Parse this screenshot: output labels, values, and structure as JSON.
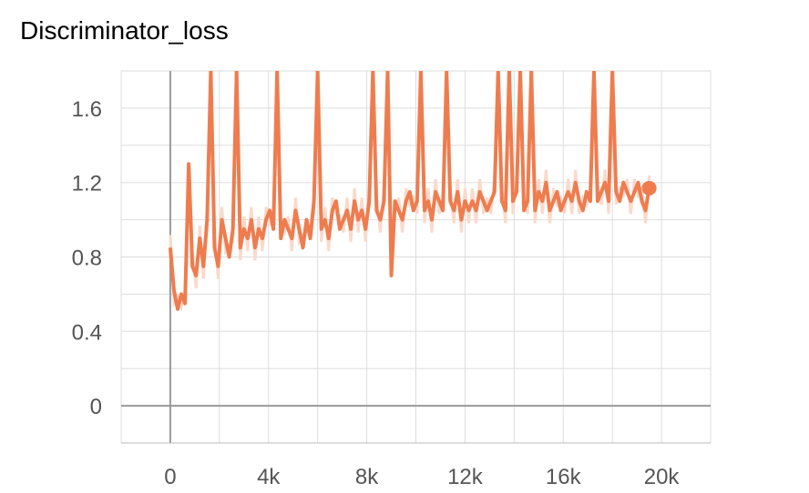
{
  "chart_data": {
    "type": "line",
    "title": "Discriminator_loss",
    "xlabel": "",
    "ylabel": "",
    "xlim": [
      -2000,
      22000
    ],
    "ylim": [
      -0.2,
      1.8
    ],
    "x_ticks": [
      0,
      4000,
      8000,
      12000,
      16000,
      20000
    ],
    "x_tick_labels": [
      "0",
      "4k",
      "8k",
      "12k",
      "16k",
      "20k"
    ],
    "y_ticks": [
      0,
      0.4,
      0.8,
      1.2,
      1.6
    ],
    "y_tick_labels": [
      "0",
      "0.4",
      "0.8",
      "1.2",
      "1.6"
    ],
    "grid": true,
    "colors": {
      "smoothed": "#ef7c4e",
      "raw": "#fbd9cb",
      "grid": "#dddddd",
      "zero_axis": "#999999"
    },
    "series": [
      {
        "x": [
          0,
          150,
          300,
          450,
          600,
          750,
          900,
          1050,
          1200,
          1350,
          1500,
          1650,
          1800,
          1950,
          2100,
          2250,
          2400,
          2550,
          2700,
          2850,
          3000,
          3150,
          3300,
          3450,
          3600,
          3750,
          3900,
          4050,
          4200,
          4350,
          4500,
          4650,
          4800,
          4950,
          5100,
          5250,
          5400,
          5550,
          5700,
          5850,
          6000,
          6150,
          6300,
          6450,
          6600,
          6750,
          6900,
          7050,
          7200,
          7350,
          7500,
          7650,
          7800,
          7950,
          8100,
          8250,
          8400,
          8550,
          8700,
          8850,
          9000,
          9150,
          9300,
          9450,
          9600,
          9750,
          9900,
          10050,
          10200,
          10350,
          10500,
          10650,
          10800,
          10950,
          11100,
          11250,
          11400,
          11550,
          11700,
          11850,
          12000,
          12150,
          12300,
          12450,
          12600,
          12750,
          12900,
          13050,
          13200,
          13350,
          13500,
          13650,
          13800,
          13950,
          14100,
          14250,
          14400,
          14550,
          14700,
          14850,
          15000,
          15150,
          15300,
          15450,
          15600,
          15750,
          15900,
          16050,
          16200,
          16350,
          16500,
          16650,
          16800,
          16950,
          17100,
          17250,
          17400,
          17550,
          17700,
          17850,
          18000,
          18150,
          18300,
          18450,
          18600,
          18750,
          18900,
          19050,
          19200,
          19350,
          19500
        ],
        "y": [
          0.85,
          0.62,
          0.52,
          0.6,
          0.55,
          1.3,
          0.75,
          0.7,
          0.9,
          0.75,
          1.0,
          1.8,
          0.85,
          0.75,
          1.0,
          0.9,
          0.8,
          0.95,
          1.8,
          0.85,
          0.95,
          0.9,
          1.0,
          0.85,
          0.95,
          0.9,
          1.0,
          1.05,
          0.95,
          1.8,
          0.9,
          1.0,
          0.95,
          0.9,
          1.05,
          0.95,
          0.85,
          1.0,
          0.9,
          1.1,
          1.8,
          0.95,
          1.0,
          0.9,
          1.05,
          1.1,
          0.95,
          1.0,
          1.05,
          0.95,
          1.1,
          1.0,
          1.05,
          0.95,
          1.1,
          1.8,
          1.05,
          1.0,
          1.1,
          1.8,
          0.7,
          1.1,
          1.05,
          1.0,
          1.1,
          1.15,
          1.05,
          1.1,
          1.8,
          1.05,
          1.1,
          1.0,
          1.15,
          1.1,
          1.05,
          1.8,
          1.1,
          1.05,
          1.15,
          1.0,
          1.1,
          1.05,
          1.1,
          1.05,
          1.15,
          1.1,
          1.05,
          1.1,
          1.15,
          1.8,
          1.1,
          1.05,
          1.8,
          1.1,
          1.15,
          1.8,
          1.05,
          1.1,
          1.8,
          1.05,
          1.15,
          1.1,
          1.2,
          1.05,
          1.1,
          1.15,
          1.05,
          1.1,
          1.15,
          1.1,
          1.2,
          1.1,
          1.05,
          1.15,
          1.1,
          1.8,
          1.1,
          1.15,
          1.2,
          1.1,
          1.8,
          1.15,
          1.1,
          1.2,
          1.15,
          1.1,
          1.15,
          1.2,
          1.1,
          1.05,
          1.17
        ]
      }
    ]
  }
}
